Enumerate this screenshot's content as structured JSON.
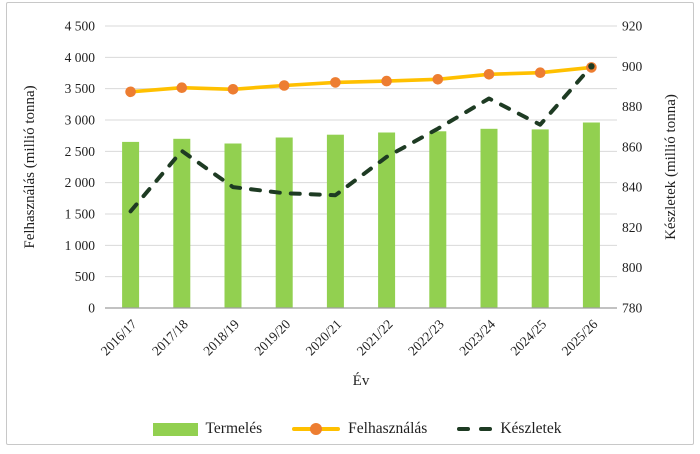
{
  "figure": {
    "x_title": "Év"
  },
  "chart_data": {
    "type": "combo",
    "title": "",
    "xlabel": "Év",
    "grid": true,
    "legend_position": "bottom",
    "categories": [
      "2016/17",
      "2017/18",
      "2018/19",
      "2019/20",
      "2020/21",
      "2021/22",
      "2022/23",
      "2023/24",
      "2024/25",
      "2025/26"
    ],
    "series": [
      {
        "name": "Termelés",
        "type": "bar",
        "axis": "left",
        "color": "#92d050",
        "values": [
          2650,
          2700,
          2625,
          2720,
          2765,
          2800,
          2820,
          2860,
          2850,
          2960
        ]
      },
      {
        "name": "Felhasználás",
        "type": "line",
        "axis": "left",
        "color": "#ffc000",
        "marker": "circle",
        "marker_color": "#ed7d31",
        "values": [
          3450,
          3515,
          3490,
          3550,
          3600,
          3620,
          3650,
          3730,
          3755,
          3840
        ]
      },
      {
        "name": "Készletek",
        "type": "dashed-line",
        "axis": "right",
        "color": "#1e3b23",
        "values": [
          828,
          858,
          840,
          837,
          836,
          855,
          869,
          884,
          871,
          900
        ]
      }
    ],
    "left_axis": {
      "title": "Felhasználás (millió tonna)",
      "min": 0,
      "max": 4500,
      "step": 500,
      "tick_labels": [
        "4 500",
        "4 000",
        "3 500",
        "3 000",
        "2 500",
        "2 000",
        "1 500",
        "1 000",
        "500",
        "0"
      ],
      "tick_values": [
        4500,
        4000,
        3500,
        3000,
        2500,
        2000,
        1500,
        1000,
        500,
        0
      ]
    },
    "right_axis": {
      "title": "Készletek (millió tonna)",
      "min": 780,
      "max": 920,
      "step": 20,
      "tick_labels": [
        "920",
        "900",
        "880",
        "860",
        "840",
        "820",
        "800",
        "780"
      ],
      "tick_values": [
        920,
        900,
        880,
        860,
        840,
        820,
        800,
        780
      ]
    },
    "colors": {
      "grid": "#d9d9d9",
      "axis_line": "#9e9e9e",
      "text": "#1f1f1f",
      "frame_border": "#c8c8c8"
    }
  }
}
